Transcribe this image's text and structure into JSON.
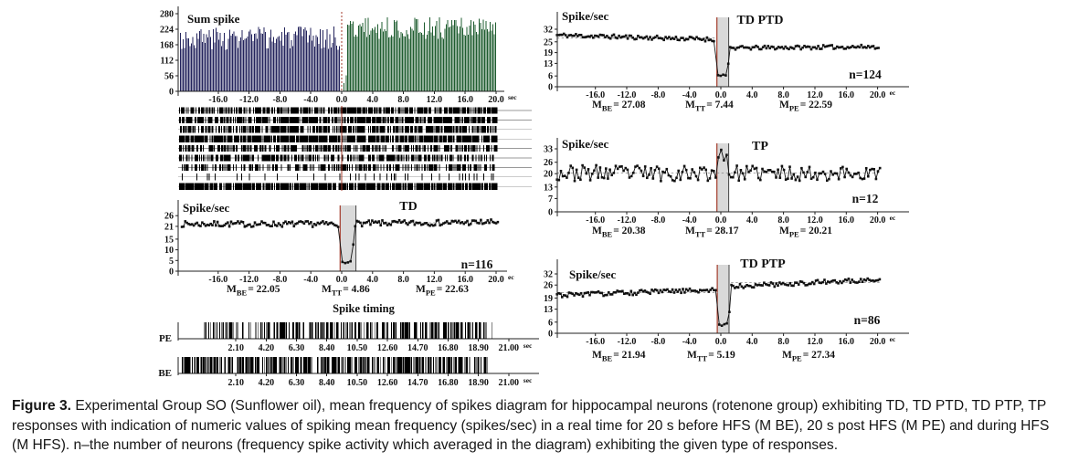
{
  "caption": {
    "label": "Figure 3.",
    "text": " Experimental Group SO (Sunflower oil), mean frequency of spikes diagram for hippocampal neurons (rotenone group) exhibiting TD, TD PTD, TD PTP, TP responses with indication of numeric values of spiking mean frequency (spikes/sec) in a real time for 20 s before HFS (M BE), 20 s post HFS (M PE) and during HFS (M HFS). n–the number of neurons (frequency spike activity which averaged in the diagram) exhibiting the given type of responses."
  },
  "colors": {
    "bar_before": "#23235c",
    "bar_after": "#1e5c2f",
    "stim_red": "#a33a2a",
    "band_fill": "#d9d9d9",
    "band_edge": "#444444",
    "trace": "#111111",
    "ref_dash": "#888888",
    "axis": "#222222"
  },
  "chart_data": [
    {
      "id": "sum",
      "type": "bar",
      "title": "Sum spike",
      "x_unit": "sec",
      "y_ticks": [
        280,
        224,
        168,
        112,
        56,
        0
      ],
      "x_ticks": [
        "-16.0",
        "-12.0",
        "-8.0",
        "-4.0",
        "0.0",
        "4.0",
        "8.0",
        "12.0",
        "16.0",
        "20.0"
      ],
      "ylim": [
        0,
        280
      ],
      "xlim": [
        -21,
        21
      ],
      "stim_time": 0,
      "bars": {
        "before": {
          "t": [
            -20.9,
            -0.25
          ],
          "mean": 192,
          "spread": 42
        },
        "onset_values": [
          30,
          58
        ],
        "after": {
          "t": [
            0.7,
            20.0
          ],
          "mean": 228,
          "spread": 40
        }
      }
    },
    {
      "id": "raster",
      "type": "raster",
      "rows": 9,
      "row_densities": [
        0.72,
        0.78,
        0.7,
        0.9,
        0.62,
        0.6,
        0.52,
        0.12,
        0.88
      ],
      "t_range": [
        -20,
        20
      ],
      "stim_time": 0
    },
    {
      "id": "td",
      "type": "line",
      "title": "TD",
      "ylabel": "Spike/sec",
      "n_label": "n=116",
      "x_unit": "ec",
      "y_ticks": [
        26,
        21,
        15,
        10,
        5,
        0
      ],
      "x_ticks": [
        "-16.0",
        "-12.0",
        "-8.0",
        "-4.0",
        "0.0",
        "4.0",
        "8.0",
        "12.0",
        "16.0",
        "20.0"
      ],
      "ylim": [
        0,
        28
      ],
      "band": [
        -0.2,
        1.85
      ],
      "segments": [
        {
          "name": "before_HFS",
          "t": [
            -20.7,
            -0.4
          ],
          "mean": 22.05,
          "noise": 1.35,
          "step": 0.22
        },
        {
          "name": "during_HFS",
          "t": [
            0.1,
            1.5
          ],
          "values": [
            4.3,
            3.8,
            4.1,
            4.6,
            12.5
          ]
        },
        {
          "name": "post_HFS",
          "t": [
            1.75,
            20.3
          ],
          "from": 22.3,
          "to": 22.9,
          "noise": 1.35,
          "step": 0.22
        }
      ],
      "refs": [
        {
          "y": 22.63,
          "t": [
            1.8,
            20.3
          ]
        }
      ],
      "m_labels": [
        {
          "sub": "BE",
          "value": "22.05"
        },
        {
          "sub": "TT",
          "value": "4.86"
        },
        {
          "sub": "PE",
          "value": "22.63"
        }
      ]
    },
    {
      "id": "timing",
      "type": "raster",
      "title": "Spike timing",
      "x_unit": "sec",
      "x_ticks": [
        "2.10",
        "4.20",
        "6.30",
        "8.40",
        "10.50",
        "12.60",
        "14.70",
        "16.80",
        "18.90",
        "21.00"
      ],
      "rows": [
        {
          "label": "PE",
          "span_sec": [
            -0.1,
            19.8
          ],
          "density": 0.5
        },
        {
          "label": "BE",
          "span_sec": [
            -1.75,
            19.5
          ],
          "density": 0.53
        }
      ]
    },
    {
      "id": "tdptd",
      "type": "line",
      "title": "TD PTD",
      "ylabel": "Spike/sec",
      "n_label": "n=124",
      "x_unit": "ec",
      "y_ticks": [
        32,
        25,
        19,
        13,
        6,
        0
      ],
      "x_ticks": [
        "-16.0",
        "-12.0",
        "-8.0",
        "-4.0",
        "0.0",
        "4.0",
        "8.0",
        "12.0",
        "16.0",
        "20.0"
      ],
      "ylim": [
        0,
        34
      ],
      "band": [
        -0.5,
        1.0
      ],
      "segments": [
        {
          "name": "before_HFS",
          "t": [
            -20.9,
            -0.7
          ],
          "from": 28.7,
          "to": 26.3,
          "noise": 1.2,
          "step": 0.22
        },
        {
          "name": "during_HFS",
          "t": [
            -0.35,
            0.95
          ],
          "values": [
            6.4,
            6.1,
            6.7,
            6.3,
            12.8
          ]
        },
        {
          "name": "post_HFS",
          "t": [
            1.2,
            20.3
          ],
          "from": 21.5,
          "to": 22.3,
          "noise": 1.1,
          "step": 0.22
        }
      ],
      "refs": [
        {
          "y": 27.08,
          "t": [
            -20.9,
            -0.5
          ]
        }
      ],
      "m_labels": [
        {
          "sub": "BE",
          "value": "27.08"
        },
        {
          "sub": "TT",
          "value": "7.44"
        },
        {
          "sub": "PE",
          "value": "22.59"
        }
      ]
    },
    {
      "id": "tp",
      "type": "line",
      "title": "TP",
      "ylabel": "Spike/sec",
      "n_label": "n=12",
      "x_unit": "ec",
      "y_ticks": [
        33,
        26,
        20,
        13,
        7,
        0
      ],
      "x_ticks": [
        "-16.0",
        "-12.0",
        "-8.0",
        "-4.0",
        "0.0",
        "4.0",
        "8.0",
        "12.0",
        "16.0",
        "20.0"
      ],
      "ylim": [
        0,
        35
      ],
      "band": [
        -0.5,
        1.0
      ],
      "segments": [
        {
          "name": "before_HFS",
          "t": [
            -20.9,
            -0.6
          ],
          "mean": 20.3,
          "noise": 4.2,
          "step": 0.25,
          "clamp": [
            11,
            32
          ]
        },
        {
          "name": "during_HFS",
          "t": [
            -0.3,
            0.75
          ],
          "values": [
            28.5,
            32.5,
            27.0,
            29.8
          ]
        },
        {
          "name": "post_HFS",
          "t": [
            1.05,
            20.3
          ],
          "mean": 20.2,
          "noise": 4.0,
          "step": 0.25,
          "clamp": [
            11,
            32
          ]
        }
      ],
      "refs": [
        {
          "y": 20.38,
          "t": [
            -20.9,
            20.3
          ]
        }
      ],
      "m_labels": [
        {
          "sub": "BE",
          "value": "20.38"
        },
        {
          "sub": "TT",
          "value": "28.17"
        },
        {
          "sub": "PE",
          "value": "20.21"
        }
      ]
    },
    {
      "id": "tdptp",
      "type": "line",
      "title": "TD PTP",
      "ylabel": "Spike/sec",
      "n_label": "n=86",
      "x_unit": "ec",
      "y_ticks": [
        32,
        26,
        19,
        13,
        6,
        0
      ],
      "x_ticks": [
        "-16.0",
        "-12.0",
        "-8.0",
        "-4.0",
        "0.0",
        "4.0",
        "8.0",
        "12.0",
        "16.0",
        "20.0"
      ],
      "ylim": [
        0,
        34
      ],
      "band": [
        -0.45,
        1.05
      ],
      "segments": [
        {
          "name": "before_HFS",
          "t": [
            -20.9,
            -0.5
          ],
          "from": 20.6,
          "to": 23.4,
          "noise": 1.3,
          "step": 0.22
        },
        {
          "name": "during_HFS",
          "t": [
            -0.2,
            1.1
          ],
          "values": [
            4.7,
            4.1,
            4.9,
            5.3,
            11.5
          ]
        },
        {
          "name": "post_HFS",
          "t": [
            1.35,
            20.3
          ],
          "from": 25.3,
          "to": 29.0,
          "noise": 1.25,
          "step": 0.22
        }
      ],
      "refs": [
        {
          "y": 21.94,
          "t": [
            -20.9,
            -0.4
          ]
        },
        {
          "y": 27.34,
          "t": [
            1.3,
            20.3
          ]
        }
      ],
      "m_labels": [
        {
          "sub": "BE",
          "value": "21.94"
        },
        {
          "sub": "TT",
          "value": "5.19"
        },
        {
          "sub": "PE",
          "value": "27.34"
        }
      ]
    }
  ]
}
